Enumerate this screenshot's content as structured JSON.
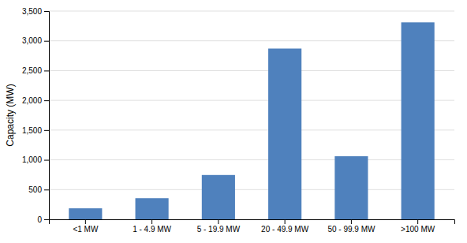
{
  "chart_data": {
    "type": "bar",
    "categories": [
      "<1 MW",
      "1 - 4.9 MW",
      "5 - 19.9 MW",
      "20 - 49.9 MW",
      "50 - 99.9 MW",
      ">100 MW"
    ],
    "values": [
      185,
      355,
      745,
      2870,
      1060,
      3310
    ],
    "color": "#4F81BD",
    "ylabel": "Capacity (MW)",
    "ylim": [
      0,
      3500
    ],
    "yticks": [
      0,
      500,
      {
        "value": 1000,
        "label": "1,000"
      },
      {
        "value": 1500,
        "label": "1,500"
      },
      {
        "value": 2000,
        "label": "2,000"
      },
      {
        "value": 2500,
        "label": "2,500"
      },
      {
        "value": 3000,
        "label": "3,000"
      },
      {
        "value": 3500,
        "label": "3,500"
      }
    ],
    "grid": true
  }
}
